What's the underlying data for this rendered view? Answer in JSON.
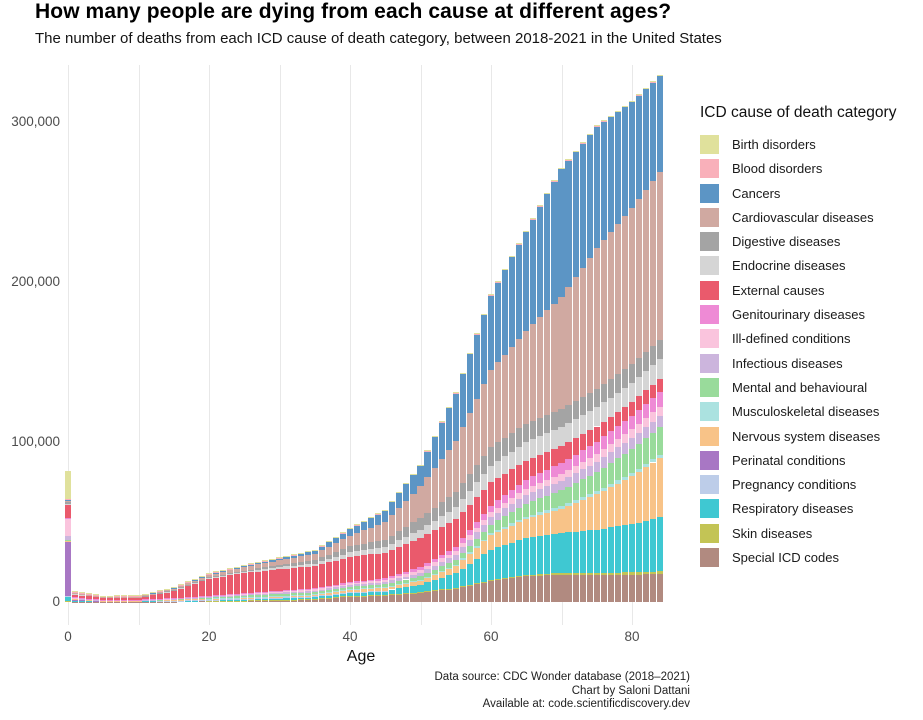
{
  "title": "How many people are dying from each cause at different ages?",
  "subtitle": "The number of deaths from each ICD cause of death category, between 2018-2021 in the United States",
  "y_axis": {
    "ticks": [
      "0",
      "100,000",
      "200,000",
      "300,000"
    ],
    "values": [
      0,
      100000,
      200000,
      300000
    ]
  },
  "x_axis": {
    "label": "Age",
    "ticks": [
      "0",
      "20",
      "40",
      "60",
      "80"
    ],
    "values": [
      0,
      20,
      40,
      60,
      80
    ]
  },
  "legend": {
    "title": "ICD cause of death category",
    "items": [
      {
        "label": "Birth disorders",
        "color": "#e0e19c"
      },
      {
        "label": "Blood disorders",
        "color": "#f9b0ba"
      },
      {
        "label": "Cancers",
        "color": "#5c95c5"
      },
      {
        "label": "Cardiovascular diseases",
        "color": "#d0a9a1"
      },
      {
        "label": "Digestive diseases",
        "color": "#a4a4a4"
      },
      {
        "label": "Endocrine diseases",
        "color": "#d5d5d5"
      },
      {
        "label": "External causes",
        "color": "#ea5a6c"
      },
      {
        "label": "Genitourinary diseases",
        "color": "#ee8ad5"
      },
      {
        "label": "Ill-defined conditions",
        "color": "#fac4dd"
      },
      {
        "label": "Infectious diseases",
        "color": "#ccb5dd"
      },
      {
        "label": "Mental and behavioural",
        "color": "#99db9b"
      },
      {
        "label": "Musculoskeletal diseases",
        "color": "#abe2e0"
      },
      {
        "label": "Nervous system diseases",
        "color": "#f8c388"
      },
      {
        "label": "Perinatal conditions",
        "color": "#a877c4"
      },
      {
        "label": "Pregnancy conditions",
        "color": "#bdcde9"
      },
      {
        "label": "Respiratory diseases",
        "color": "#3fc8d2"
      },
      {
        "label": "Skin diseases",
        "color": "#c3c455"
      },
      {
        "label": "Special ICD codes",
        "color": "#b18a80"
      }
    ]
  },
  "footer": {
    "lines": [
      "Data source: CDC Wonder database (2018–2021)",
      "Chart by Saloni Dattani",
      "Available at: code.scientificdiscovery.dev"
    ]
  },
  "chart_data": {
    "type": "bar",
    "stacked": true,
    "title": "How many people are dying from each cause at different ages?",
    "xlabel": "Age",
    "ylabel": "",
    "x_range": [
      0,
      84
    ],
    "ylim": [
      0,
      330000
    ],
    "grid": "vertical-only, every 10 years",
    "legend_position": "right",
    "units": "deaths per single year of age, summed 2018-2021, values in thousands",
    "anchor_ages": [
      0,
      1,
      5,
      10,
      15,
      20,
      25,
      30,
      35,
      40,
      45,
      50,
      55,
      60,
      65,
      70,
      75,
      80,
      84
    ],
    "series": [
      {
        "name": "Special ICD codes",
        "color": "#b18a80",
        "values_thousands": [
          0.6,
          0.3,
          0.2,
          0.2,
          0.3,
          0.5,
          0.8,
          1.2,
          1.8,
          3.7,
          4.2,
          5.8,
          8.5,
          13,
          16,
          17,
          17,
          17,
          17.5
        ]
      },
      {
        "name": "Skin diseases",
        "color": "#c3c455",
        "values_thousands": [
          0.05,
          0.02,
          0.02,
          0.02,
          0.03,
          0.05,
          0.08,
          0.1,
          0.1,
          0.15,
          0.2,
          0.3,
          0.5,
          0.7,
          0.9,
          1.1,
          1.3,
          1.5,
          1.6
        ]
      },
      {
        "name": "Respiratory diseases",
        "color": "#3fc8d2",
        "values_thousands": [
          3.1,
          0.6,
          0.3,
          0.3,
          0.4,
          0.5,
          0.7,
          1,
          1.4,
          2.1,
          2.6,
          4.8,
          9,
          19,
          23,
          25,
          27,
          30,
          34
        ]
      },
      {
        "name": "Pregnancy conditions",
        "color": "#bdcde9",
        "values_thousands": [
          0.05,
          0.01,
          0,
          0,
          0.1,
          0.3,
          0.4,
          0.4,
          0.3,
          0.15,
          0.05,
          0.02,
          0,
          0,
          0,
          0,
          0,
          0,
          0
        ]
      },
      {
        "name": "Perinatal conditions",
        "color": "#a877c4",
        "values_thousands": [
          34,
          0.4,
          0.05,
          0.02,
          0.02,
          0.02,
          0,
          0,
          0,
          0,
          0,
          0,
          0,
          0,
          0,
          0,
          0,
          0,
          0
        ]
      },
      {
        "name": "Nervous system diseases",
        "color": "#f8c388",
        "values_thousands": [
          1.2,
          0.5,
          0.35,
          0.4,
          0.6,
          0.7,
          0.9,
          0.9,
          1,
          1.7,
          1.9,
          2.5,
          4.5,
          9,
          12,
          15,
          22,
          30,
          37
        ]
      },
      {
        "name": "Musculoskeletal diseases",
        "color": "#abe2e0",
        "values_thousands": [
          0.02,
          0.01,
          0.01,
          0.02,
          0.03,
          0.05,
          0.1,
          0.15,
          0.2,
          0.3,
          0.4,
          0.6,
          0.9,
          1.2,
          1.5,
          1.7,
          1.9,
          2,
          2
        ]
      },
      {
        "name": "Mental and behavioural",
        "color": "#99db9b",
        "values_thousands": [
          0.05,
          0.03,
          0.03,
          0.1,
          0.3,
          0.8,
          1,
          1.2,
          1.3,
          1.5,
          1.8,
          2,
          3,
          5.5,
          8,
          10,
          12,
          15,
          17
        ]
      },
      {
        "name": "Infectious diseases",
        "color": "#ccb5dd",
        "values_thousands": [
          2.2,
          0.4,
          0.15,
          0.15,
          0.2,
          0.3,
          0.5,
          0.8,
          1,
          1,
          1.3,
          2.2,
          3.2,
          4.5,
          5.5,
          6,
          6.5,
          7,
          7
        ]
      },
      {
        "name": "Ill-defined conditions",
        "color": "#fac4dd",
        "values_thousands": [
          10.6,
          0.5,
          0.2,
          0.2,
          0.4,
          0.6,
          0.7,
          0.8,
          0.9,
          1,
          1.2,
          1.8,
          2.4,
          3.2,
          4,
          4.5,
          5,
          5.5,
          6
        ]
      },
      {
        "name": "Genitourinary diseases",
        "color": "#ee8ad5",
        "values_thousands": [
          0.5,
          0.1,
          0.05,
          0.05,
          0.1,
          0.2,
          0.3,
          0.5,
          0.6,
          0.8,
          1.2,
          1.7,
          2.6,
          4.2,
          5.5,
          6.5,
          7.5,
          8.5,
          9.4
        ]
      },
      {
        "name": "External causes",
        "color": "#ea5a6c",
        "values_thousands": [
          8.1,
          2.2,
          1.4,
          1.3,
          4.5,
          10.5,
          12.5,
          13.5,
          13.8,
          15.8,
          16,
          18.5,
          17,
          14.5,
          12,
          10.5,
          9.5,
          8.5,
          8
        ]
      },
      {
        "name": "Endocrine diseases",
        "color": "#d5d5d5",
        "values_thousands": [
          0.9,
          0.2,
          0.15,
          0.2,
          0.35,
          0.6,
          0.8,
          1.2,
          1.6,
          2.9,
          3.4,
          5,
          7.5,
          10.5,
          11.5,
          12,
          12,
          12,
          12.5
        ]
      },
      {
        "name": "Digestive diseases",
        "color": "#a4a4a4",
        "values_thousands": [
          0.9,
          0.1,
          0.05,
          0.1,
          0.15,
          0.4,
          0.8,
          1.4,
          2.2,
          3.8,
          4.5,
          7.4,
          9.5,
          11.5,
          11.5,
          11.5,
          11.5,
          11.5,
          12
        ]
      },
      {
        "name": "Cardiovascular diseases",
        "color": "#d0a9a1",
        "values_thousands": [
          1,
          0.3,
          0.2,
          0.3,
          0.7,
          1.3,
          2.2,
          3,
          4,
          6.5,
          11,
          19.6,
          32,
          48,
          58,
          70,
          88,
          98,
          105
        ]
      },
      {
        "name": "Cancers",
        "color": "#5c95c5",
        "values_thousands": [
          0.4,
          0.35,
          0.5,
          0.5,
          0.8,
          0.9,
          1.1,
          1.5,
          2.2,
          4.5,
          7.5,
          13,
          30,
          47,
          62,
          80,
          76,
          66,
          60
        ]
      },
      {
        "name": "Blood disorders",
        "color": "#f9b0ba",
        "values_thousands": [
          1,
          0.15,
          0.1,
          0.1,
          0.1,
          0.1,
          0.15,
          0.1,
          0.15,
          0.2,
          0.25,
          0.2,
          0.3,
          0.4,
          0.4,
          0.35,
          0.4,
          0.4,
          0.3
        ]
      },
      {
        "name": "Birth disorders",
        "color": "#e0e19c",
        "values_thousands": [
          17,
          0.9,
          0.25,
          0.25,
          0.3,
          0.25,
          0.15,
          0.12,
          0.1,
          0.1,
          0.15,
          0.2,
          0.2,
          0.3,
          0.3,
          0.3,
          0.3,
          0.3,
          0.3
        ]
      }
    ]
  }
}
